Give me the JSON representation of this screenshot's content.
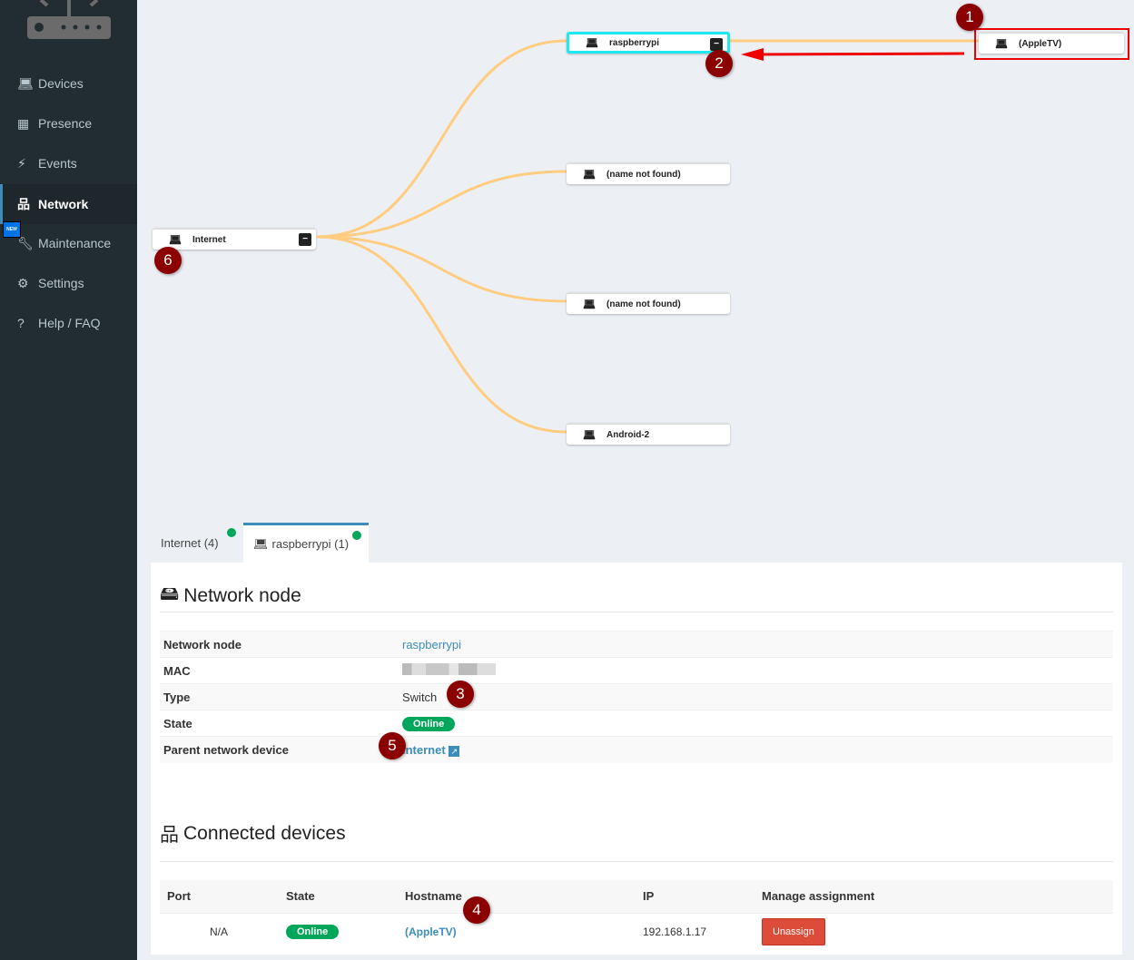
{
  "sidebar": {
    "items": [
      {
        "label": "Devices",
        "icon": "laptop-icon"
      },
      {
        "label": "Presence",
        "icon": "calendar-icon"
      },
      {
        "label": "Events",
        "icon": "bolt-icon"
      },
      {
        "label": "Network",
        "icon": "sitemap-icon",
        "active": true
      },
      {
        "label": "Maintenance",
        "icon": "wrench-icon",
        "badge": "NEW"
      },
      {
        "label": "Settings",
        "icon": "gear-icon"
      },
      {
        "label": "Help / FAQ",
        "icon": "question-icon"
      }
    ]
  },
  "tree": {
    "root": {
      "label": "Internet"
    },
    "children": [
      {
        "label": "raspberrypi"
      },
      {
        "label": "(name not found)"
      },
      {
        "label": "(name not found)"
      },
      {
        "label": "Android-2"
      }
    ],
    "grandchild": {
      "label": "(AppleTV)"
    },
    "link_color": "#ffcc80",
    "selected_color": "#1de9f0"
  },
  "annotations": [
    "1",
    "2",
    "3",
    "4",
    "5",
    "6"
  ],
  "tabs": [
    {
      "label": "Internet (4)"
    },
    {
      "label": "raspberrypi (1)",
      "active": true
    }
  ],
  "node_section": {
    "title": "Network node",
    "rows": [
      {
        "label": "Network node",
        "value": "raspberrypi"
      },
      {
        "label": "MAC",
        "value": ""
      },
      {
        "label": "Type",
        "value": "Switch"
      },
      {
        "label": "State",
        "value": "Online"
      },
      {
        "label": "Parent network device",
        "value": "Internet"
      }
    ]
  },
  "devices_section": {
    "title": "Connected devices",
    "columns": [
      "Port",
      "State",
      "Hostname",
      "IP",
      "Manage assignment"
    ],
    "rows": [
      {
        "port": "N/A",
        "state": "Online",
        "hostname": "(AppleTV)",
        "ip": "192.168.1.17",
        "action": "Unassign"
      }
    ]
  }
}
